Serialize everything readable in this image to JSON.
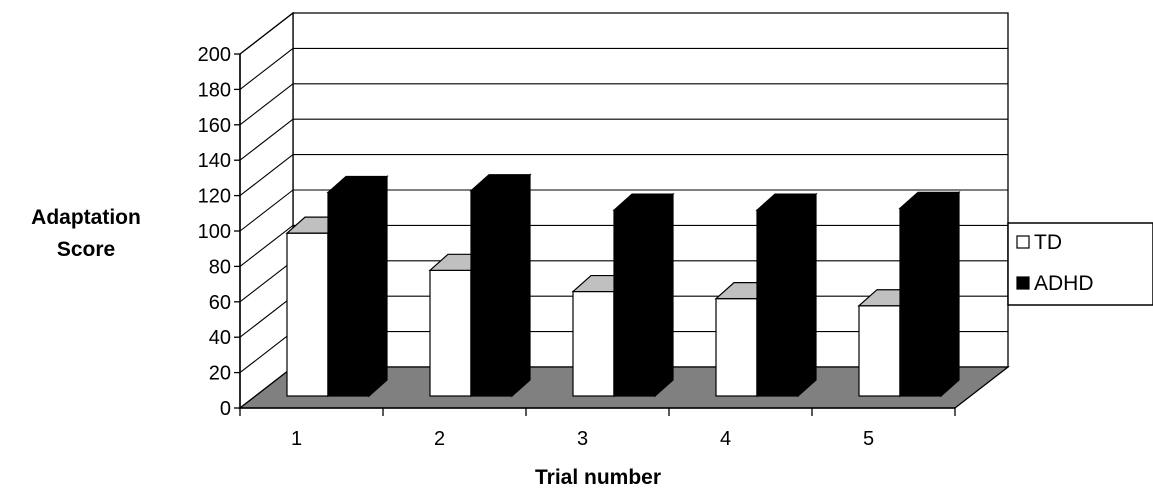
{
  "chart_data": {
    "type": "bar",
    "style": "3d-clustered-column",
    "categories": [
      "1",
      "2",
      "3",
      "4",
      "5"
    ],
    "series": [
      {
        "name": "TD",
        "values": [
          92,
          71,
          59,
          55,
          51
        ],
        "color": "#ffffff"
      },
      {
        "name": "ADHD",
        "values": [
          115,
          116,
          105,
          105,
          106
        ],
        "color": "#000000"
      }
    ],
    "ylabel": "Adaptation Score",
    "xlabel": "Trial number",
    "yticks": [
      0,
      20,
      40,
      60,
      80,
      100,
      120,
      140,
      160,
      180,
      200
    ],
    "ylim": [
      0,
      200
    ],
    "grid": true,
    "legend_position": "right",
    "floor_color": "#808080"
  }
}
